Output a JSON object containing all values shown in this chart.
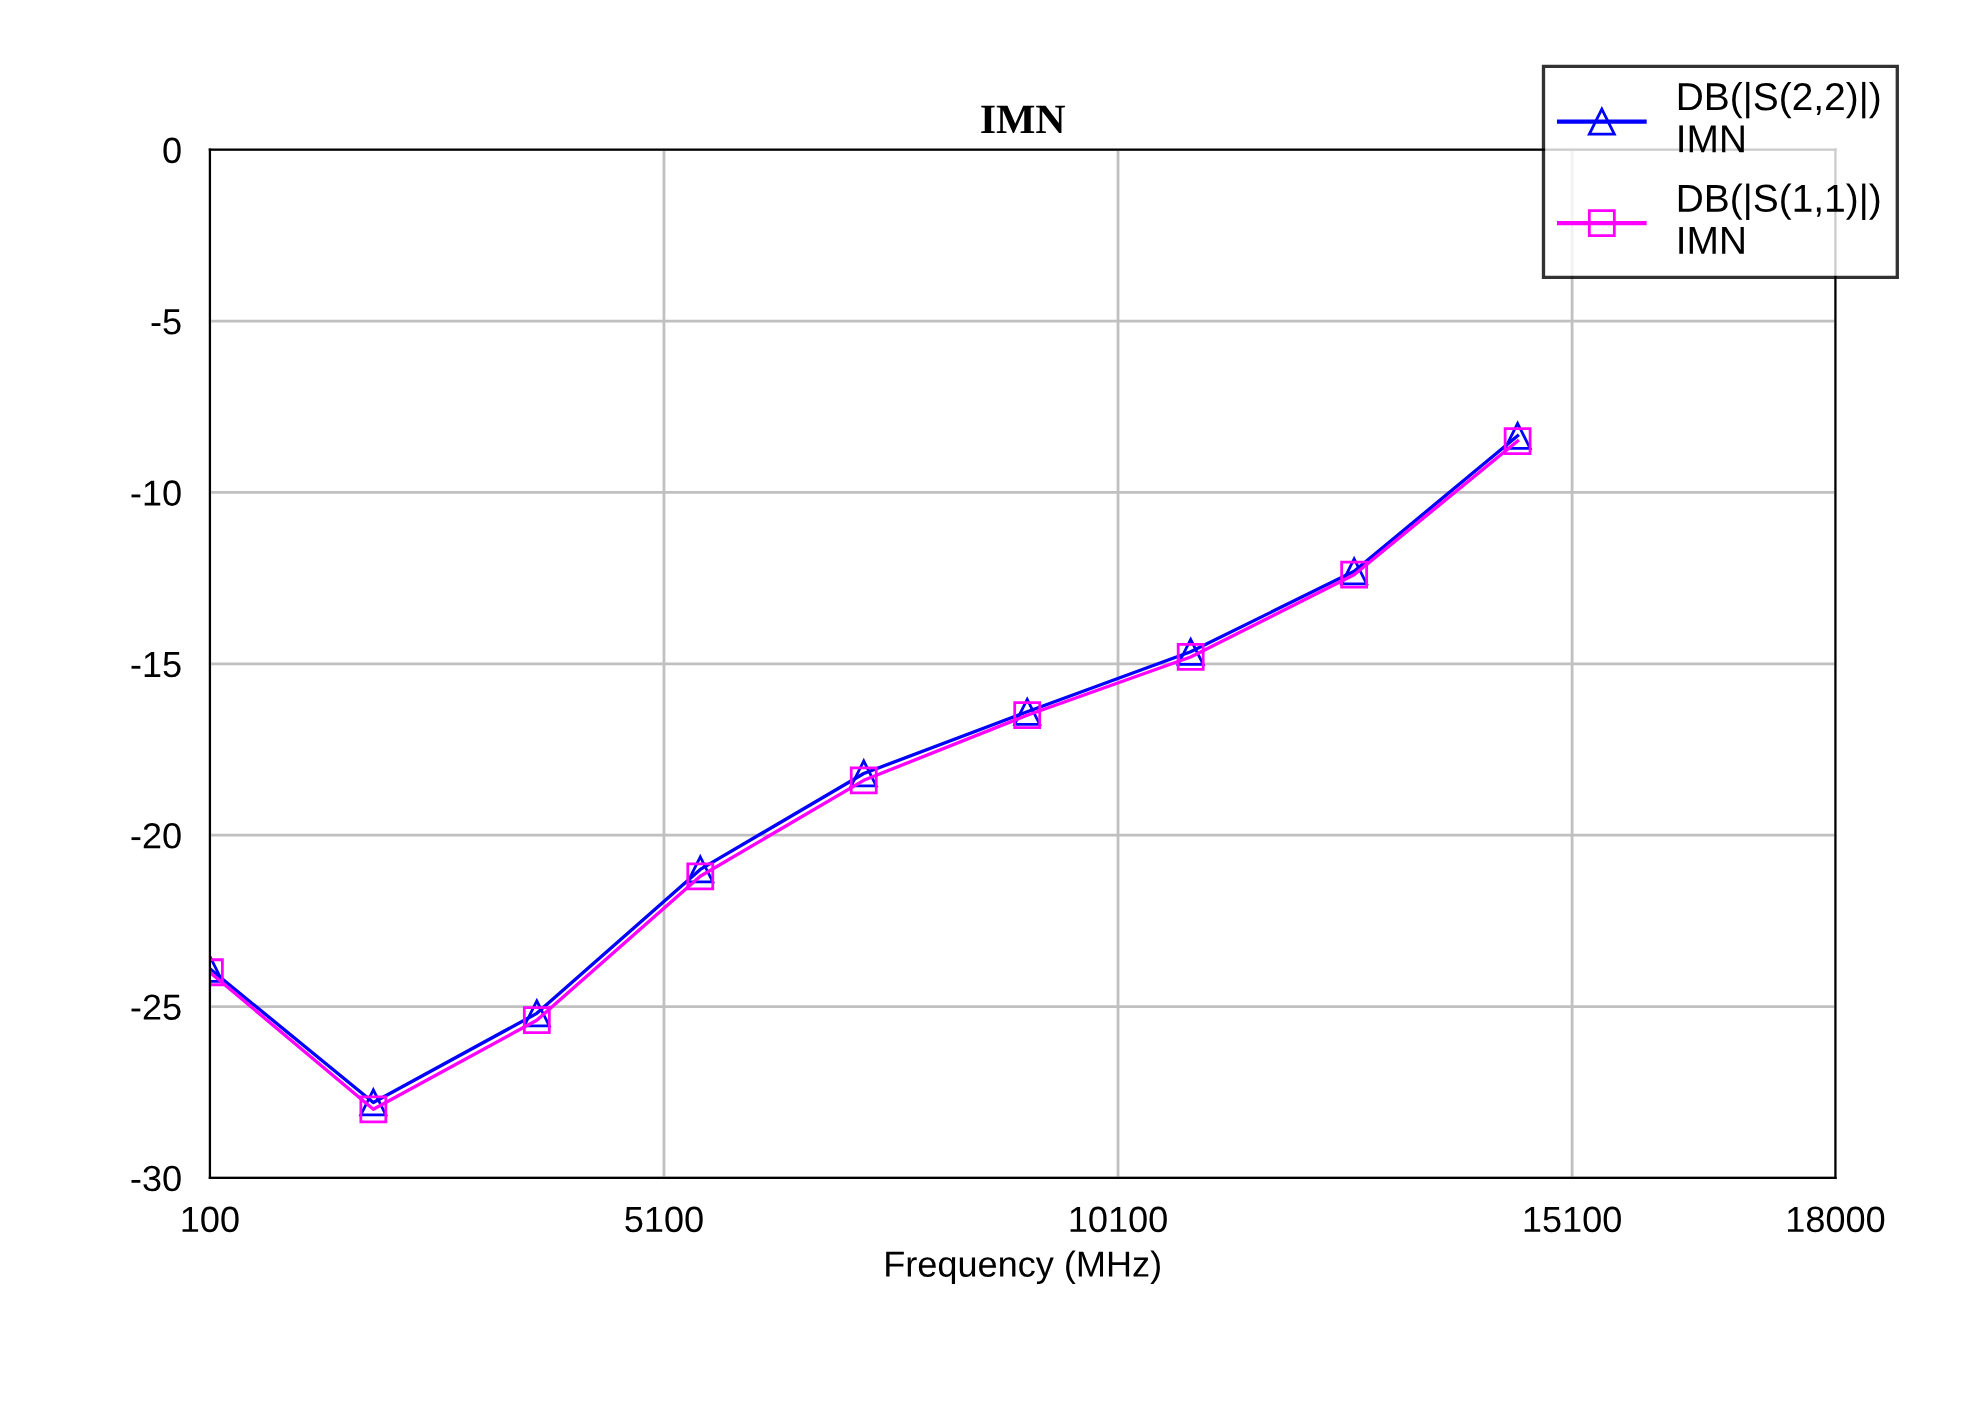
{
  "chart_data": {
    "type": "line",
    "title": "IMN",
    "xlabel": "Frequency (MHz)",
    "x": [
      100,
      1900,
      3700,
      5500,
      7300,
      9100,
      10900,
      12700,
      14500
    ],
    "series": [
      {
        "name": "DB(|S(2,2)|)\nIMN",
        "color": "#0000ff",
        "marker": "triangle",
        "values": [
          -23.9,
          -27.8,
          -25.2,
          -21.0,
          -18.2,
          -16.4,
          -14.65,
          -12.3,
          -8.35
        ]
      },
      {
        "name": "DB(|S(1,1)|)\nIMN",
        "color": "#ff00ff",
        "marker": "square",
        "values": [
          -24.0,
          -28.0,
          -25.4,
          -21.2,
          -18.4,
          -16.5,
          -14.8,
          -12.4,
          -8.5
        ]
      }
    ],
    "xlim": [
      100,
      18000
    ],
    "xticks": [
      100,
      5100,
      10100,
      15100,
      18000
    ],
    "ylim": [
      -30,
      0
    ],
    "yticks": [
      -30,
      -25,
      -20,
      -15,
      -10,
      -5,
      0
    ],
    "grid": true,
    "legend": "top right",
    "line_style": "solid"
  }
}
